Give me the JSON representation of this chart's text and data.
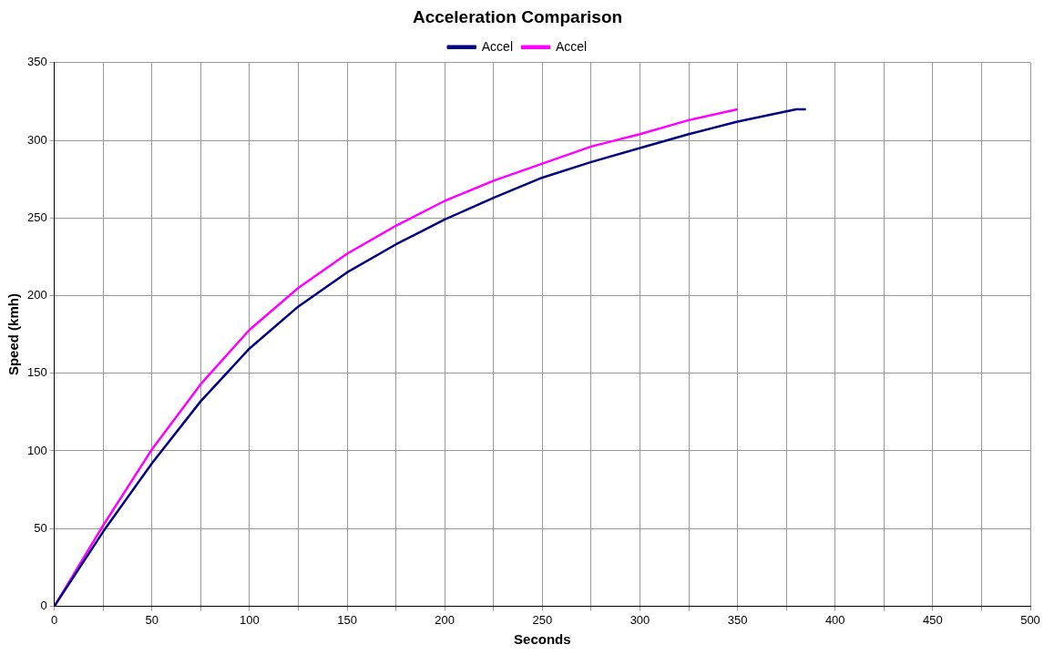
{
  "chart_data": {
    "type": "line",
    "title": "Acceleration Comparison",
    "xlabel": "Seconds",
    "ylabel": "Speed (kmh)",
    "xlim": [
      0,
      500
    ],
    "xticks": [
      0,
      {
        "value": 25,
        "label": null
      },
      50,
      {
        "value": 75,
        "label": null
      },
      100,
      {
        "value": 125,
        "label": null
      },
      150,
      {
        "value": 175,
        "label": null
      },
      200,
      {
        "value": 225,
        "label": null
      },
      250,
      {
        "value": 275,
        "label": null
      },
      300,
      {
        "value": 325,
        "label": null
      },
      350,
      {
        "value": 375,
        "label": null
      },
      400,
      {
        "value": 425,
        "label": null
      },
      450,
      {
        "value": 475,
        "label": null
      },
      500
    ],
    "ylim": [
      0,
      350
    ],
    "yticks": [
      0,
      50,
      100,
      150,
      200,
      250,
      300,
      350
    ],
    "grid": true,
    "legend": "top",
    "marker": "none",
    "line_style": "solid",
    "series": [
      {
        "name": "Accel",
        "color": "#000080",
        "x": [
          0,
          25,
          50,
          75,
          100,
          125,
          150,
          175,
          200,
          225,
          250,
          275,
          300,
          325,
          350,
          365,
          380,
          385
        ],
        "values": [
          0,
          48,
          92,
          132,
          166,
          193,
          215,
          233,
          249,
          263,
          276,
          286,
          295,
          304,
          312,
          316,
          320,
          320
        ]
      },
      {
        "name": "Accel",
        "color": "#ff00ff",
        "x": [
          0,
          25,
          50,
          75,
          100,
          125,
          150,
          175,
          200,
          225,
          250,
          275,
          300,
          325,
          350
        ],
        "values": [
          0,
          52,
          101,
          143,
          178,
          205,
          227,
          245,
          261,
          274,
          285,
          296,
          304,
          313,
          320
        ]
      }
    ]
  }
}
